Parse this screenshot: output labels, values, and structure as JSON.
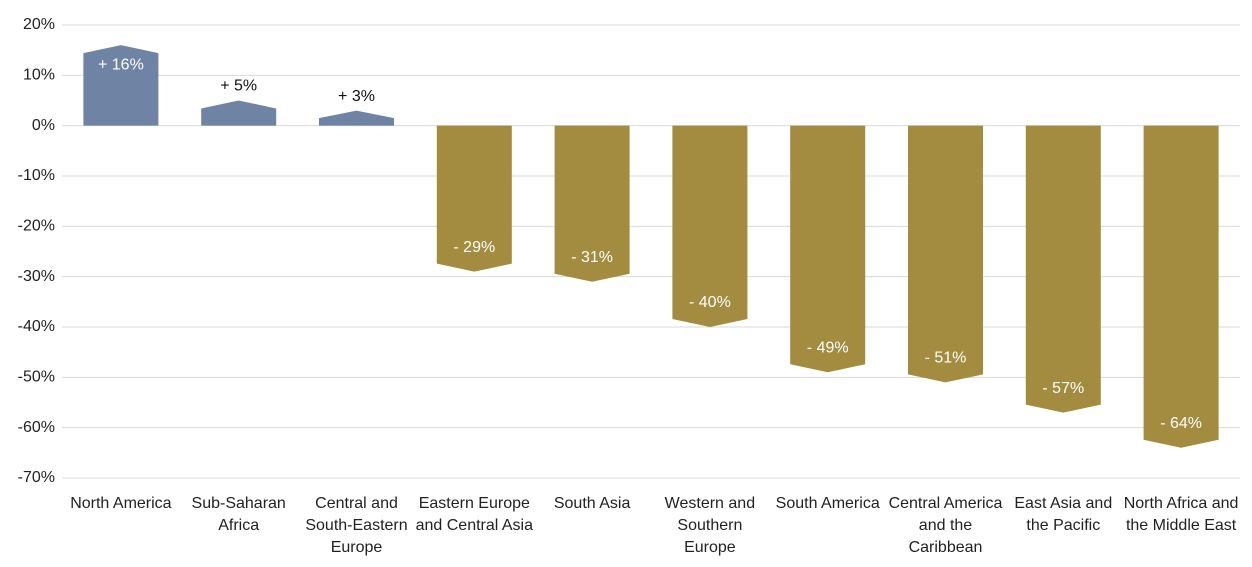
{
  "chart_data": {
    "type": "bar",
    "categories": [
      "North America",
      "Sub-Saharan Africa",
      "Central and South-Eastern Europe",
      "Eastern Europe and Central Asia",
      "South Asia",
      "Western and Southern Europe",
      "South America",
      "Central America and the Caribbean",
      "East Asia and the Pacific",
      "North Africa and the Middle East"
    ],
    "values": [
      16,
      5,
      3,
      -29,
      -31,
      -40,
      -49,
      -51,
      -57,
      -64
    ],
    "value_labels": [
      "+ 16%",
      "+ 5%",
      "+ 3%",
      "- 29%",
      "- 31%",
      "- 40%",
      "- 49%",
      "- 51%",
      "- 57%",
      "- 64%"
    ],
    "colors": [
      "#6f84a5",
      "#6f84a5",
      "#6f84a5",
      "#a38b3f",
      "#a38b3f",
      "#a38b3f",
      "#a38b3f",
      "#a38b3f",
      "#a38b3f",
      "#a38b3f"
    ],
    "ylim": [
      -70,
      20
    ],
    "yticks": [
      {
        "value": 20,
        "label": "20%"
      },
      {
        "value": 10,
        "label": "10%"
      },
      {
        "value": 0,
        "label": "0%"
      },
      {
        "value": -10,
        "label": "-10%"
      },
      {
        "value": -20,
        "label": "-20%"
      },
      {
        "value": -30,
        "label": "-30%"
      },
      {
        "value": -40,
        "label": "-40%"
      },
      {
        "value": -50,
        "label": "-50%"
      },
      {
        "value": -60,
        "label": "-60%"
      },
      {
        "value": -70,
        "label": "-70%"
      }
    ],
    "grid": true
  }
}
